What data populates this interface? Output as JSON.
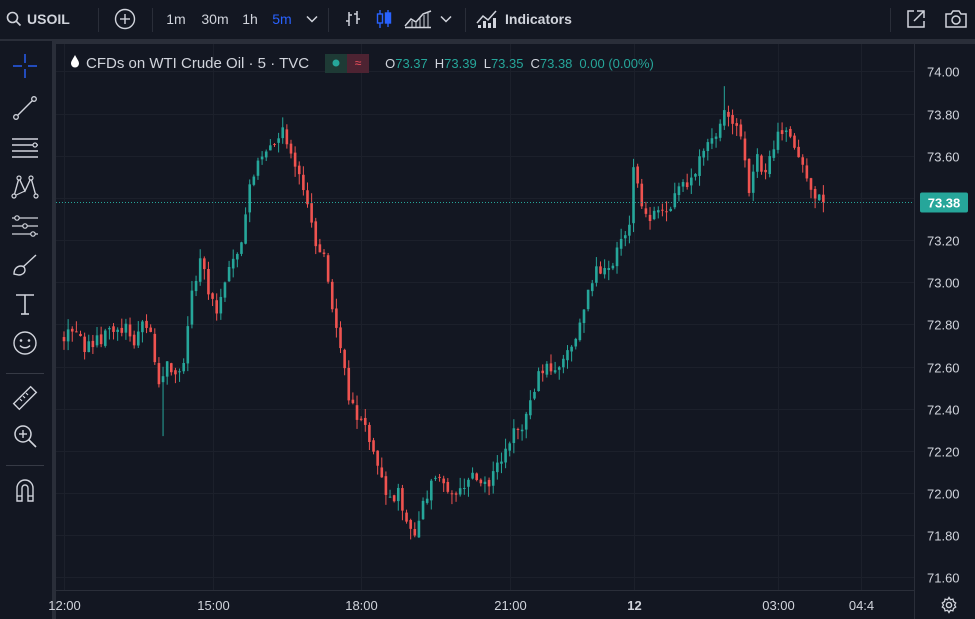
{
  "topbar": {
    "symbol": "USOIL",
    "timeframes": [
      "1m",
      "30m",
      "1h",
      "5m"
    ],
    "indicators_label": "Indicators"
  },
  "legend": {
    "title": "CFDs on WTI Crude Oil · 5 · TVC",
    "pill_symbol": "≈",
    "ohlc": [
      {
        "k": "O",
        "v": "73.37"
      },
      {
        "k": "H",
        "v": "73.39"
      },
      {
        "k": "L",
        "v": "73.35"
      },
      {
        "k": "C",
        "v": "73.38"
      },
      {
        "k": "",
        "v": "0.00 (0.00%)"
      }
    ]
  },
  "colors": {
    "background": "#131722",
    "up": "#26a69a",
    "down": "#ef5350",
    "grid": "#1c202b",
    "text": "#d1d4dc",
    "accent": "#2962ff"
  },
  "chart_data": {
    "type": "candlestick",
    "y_ticks": [
      "74.00",
      "73.80",
      "73.60",
      "73.40",
      "73.20",
      "73.00",
      "72.80",
      "72.60",
      "72.40",
      "72.20",
      "72.00",
      "71.80",
      "71.60"
    ],
    "ylim": [
      71.54,
      74.13
    ],
    "x_ticks": [
      {
        "label": "12:00",
        "t": 0
      },
      {
        "label": "15:00",
        "t": 36
      },
      {
        "label": "18:00",
        "t": 72
      },
      {
        "label": "21:00",
        "t": 108
      },
      {
        "label": "12",
        "t": 138,
        "bold": true
      },
      {
        "label": "03:00",
        "t": 173
      },
      {
        "label": "04:4",
        "t": 193
      }
    ],
    "last_price": {
      "value": 73.38,
      "label": "73.38"
    },
    "close_waypoints": [
      [
        0,
        72.75
      ],
      [
        3,
        72.78
      ],
      [
        5,
        72.68
      ],
      [
        8,
        72.72
      ],
      [
        12,
        72.78
      ],
      [
        15,
        72.79
      ],
      [
        17,
        72.7
      ],
      [
        19,
        72.82
      ],
      [
        21,
        72.78
      ],
      [
        23,
        72.5
      ],
      [
        25,
        72.6
      ],
      [
        27,
        72.58
      ],
      [
        29,
        72.62
      ],
      [
        31,
        72.95
      ],
      [
        33,
        73.12
      ],
      [
        35,
        72.95
      ],
      [
        37,
        72.88
      ],
      [
        39,
        73.0
      ],
      [
        41,
        73.12
      ],
      [
        43,
        73.18
      ],
      [
        45,
        73.45
      ],
      [
        47,
        73.55
      ],
      [
        49,
        73.62
      ],
      [
        51,
        73.68
      ],
      [
        53,
        73.72
      ],
      [
        55,
        73.62
      ],
      [
        57,
        73.5
      ],
      [
        59,
        73.35
      ],
      [
        61,
        73.2
      ],
      [
        63,
        73.12
      ],
      [
        65,
        72.9
      ],
      [
        67,
        72.7
      ],
      [
        69,
        72.45
      ],
      [
        71,
        72.35
      ],
      [
        73,
        72.3
      ],
      [
        75,
        72.2
      ],
      [
        77,
        72.05
      ],
      [
        79,
        71.98
      ],
      [
        81,
        72.0
      ],
      [
        83,
        71.88
      ],
      [
        85,
        71.82
      ],
      [
        87,
        71.95
      ],
      [
        89,
        72.05
      ],
      [
        91,
        72.1
      ],
      [
        93,
        72.0
      ],
      [
        95,
        71.98
      ],
      [
        97,
        72.05
      ],
      [
        99,
        72.08
      ],
      [
        101,
        72.03
      ],
      [
        103,
        72.06
      ],
      [
        105,
        72.12
      ],
      [
        107,
        72.2
      ],
      [
        109,
        72.28
      ],
      [
        111,
        72.33
      ],
      [
        113,
        72.45
      ],
      [
        115,
        72.55
      ],
      [
        117,
        72.6
      ],
      [
        119,
        72.58
      ],
      [
        121,
        72.62
      ],
      [
        123,
        72.7
      ],
      [
        125,
        72.8
      ],
      [
        127,
        72.95
      ],
      [
        129,
        73.05
      ],
      [
        131,
        73.08
      ],
      [
        133,
        73.1
      ],
      [
        135,
        73.2
      ],
      [
        137,
        73.28
      ],
      [
        138,
        73.55
      ],
      [
        139,
        73.45
      ],
      [
        140,
        73.35
      ],
      [
        142,
        73.3
      ],
      [
        144,
        73.33
      ],
      [
        146,
        73.35
      ],
      [
        148,
        73.4
      ],
      [
        150,
        73.45
      ],
      [
        152,
        73.5
      ],
      [
        154,
        73.58
      ],
      [
        156,
        73.65
      ],
      [
        158,
        73.72
      ],
      [
        160,
        73.82
      ],
      [
        162,
        73.75
      ],
      [
        164,
        73.68
      ],
      [
        166,
        73.45
      ],
      [
        168,
        73.58
      ],
      [
        170,
        73.5
      ],
      [
        172,
        73.65
      ],
      [
        174,
        73.72
      ],
      [
        176,
        73.68
      ],
      [
        178,
        73.6
      ],
      [
        180,
        73.48
      ],
      [
        182,
        73.42
      ],
      [
        184,
        73.38
      ]
    ],
    "close_range": [
      71.82,
      73.82
    ],
    "low_extreme": 71.78,
    "high_extreme": 73.93
  },
  "icons": [
    "search-icon",
    "plus-circle-icon",
    "chevron-down-icon",
    "bar-style-icon",
    "candle-style-icon",
    "area-style-icon",
    "indicators-icon",
    "snapshot-share-icon",
    "camera-icon",
    "crosshair-icon",
    "trendline-icon",
    "horizontal-lines-icon",
    "pattern-icon",
    "projection-icon",
    "brush-icon",
    "text-icon",
    "emoji-icon",
    "ruler-icon",
    "zoom-in-icon",
    "magnet-icon",
    "settings-gear-icon"
  ]
}
